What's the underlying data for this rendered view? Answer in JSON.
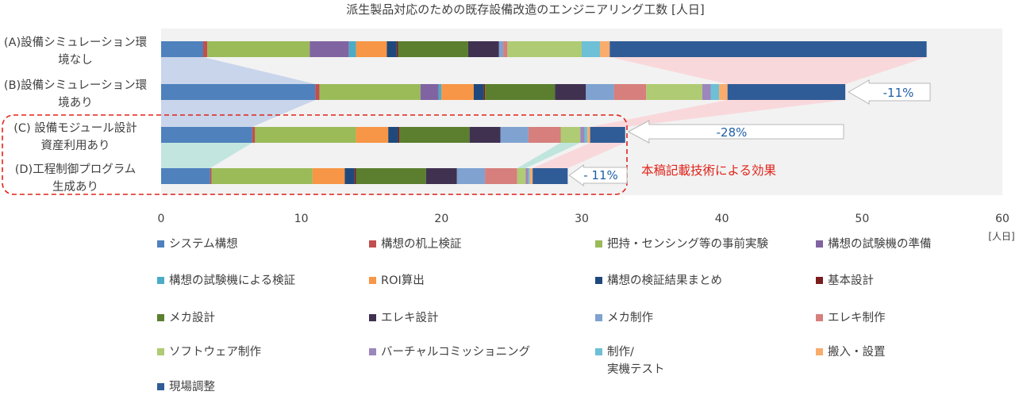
{
  "chart_data": {
    "type": "bar",
    "orientation": "horizontal",
    "stacked": true,
    "title": "派生製品対応のための既存設備改造のエンジニアリング工数 [人日]",
    "x_unit": "[人日]",
    "xlim": [
      0,
      60
    ],
    "xticks": [
      0,
      10,
      20,
      30,
      40,
      50,
      60
    ],
    "grid": false,
    "legend_position": "bottom",
    "categories": [
      [
        "(A)設備シミュレーション環",
        "境なし"
      ],
      [
        "(B)設備シミュレーション環",
        "境あり"
      ],
      [
        "(C) 設備モジュール設計",
        "資産利用あり"
      ],
      [
        "(D)工程制御プログラム",
        "生成あり"
      ]
    ],
    "series": [
      {
        "name": "システム構想",
        "color": "#4F81BD",
        "values": [
          3.0,
          11.0,
          6.5,
          3.5
        ]
      },
      {
        "name": "構想の机上検証",
        "color": "#C0504D",
        "values": [
          0.3,
          0.3,
          0.2,
          0.1
        ]
      },
      {
        "name": "把持・センシング等の事前実験",
        "color": "#9BBB59",
        "values": [
          7.3,
          7.2,
          7.2,
          7.2
        ]
      },
      {
        "name": "構想の試験機の準備",
        "color": "#8064A2",
        "values": [
          2.8,
          1.3,
          0,
          0
        ]
      },
      {
        "name": "構想の試験機による検証",
        "color": "#4BACC6",
        "values": [
          0.5,
          0.2,
          0,
          0
        ]
      },
      {
        "name": "ROI算出",
        "color": "#F79646",
        "values": [
          2.2,
          2.3,
          2.3,
          2.3
        ]
      },
      {
        "name": "構想の検証結果まとめ",
        "color": "#1F497D",
        "values": [
          0.7,
          0.7,
          0.7,
          0.7
        ]
      },
      {
        "name": "基本設計",
        "color": "#7B1C1C",
        "values": [
          0.1,
          0.1,
          0.1,
          0.1
        ]
      },
      {
        "name": "メカ設計",
        "color": "#5B7F2E",
        "values": [
          5.0,
          5.0,
          5.0,
          5.0
        ]
      },
      {
        "name": "エレキ設計",
        "color": "#403151",
        "values": [
          2.2,
          2.2,
          2.2,
          2.2
        ]
      },
      {
        "name": "メカ制作",
        "color": "#7FA2D0",
        "values": [
          0.3,
          2.0,
          2.0,
          2.0
        ]
      },
      {
        "name": "エレキ制作",
        "color": "#D67F7C",
        "values": [
          0.3,
          2.3,
          2.3,
          2.3
        ]
      },
      {
        "name": "ソフトウェア制作",
        "color": "#AFCB73",
        "values": [
          5.3,
          4.0,
          1.4,
          0.6
        ]
      },
      {
        "name": "バーチャルコミッショニング",
        "color": "#9D86BC",
        "values": [
          0,
          0.6,
          0.3,
          0.2
        ]
      },
      {
        "name": "制作/\n実機テスト",
        "color": "#6DC0D5",
        "values": [
          1.3,
          0.6,
          0.2,
          0.1
        ]
      },
      {
        "name": "搬入・設置",
        "color": "#F9AC6B",
        "values": [
          0.7,
          0.6,
          0.2,
          0.2
        ]
      },
      {
        "name": "現場調整",
        "color": "#2F5C96",
        "values": [
          22.6,
          8.4,
          2.5,
          2.5
        ]
      }
    ],
    "annotations": {
      "b": "-11%",
      "c": "-28%",
      "d": "- 11%",
      "effect": "本稿記載技術による効果"
    }
  }
}
